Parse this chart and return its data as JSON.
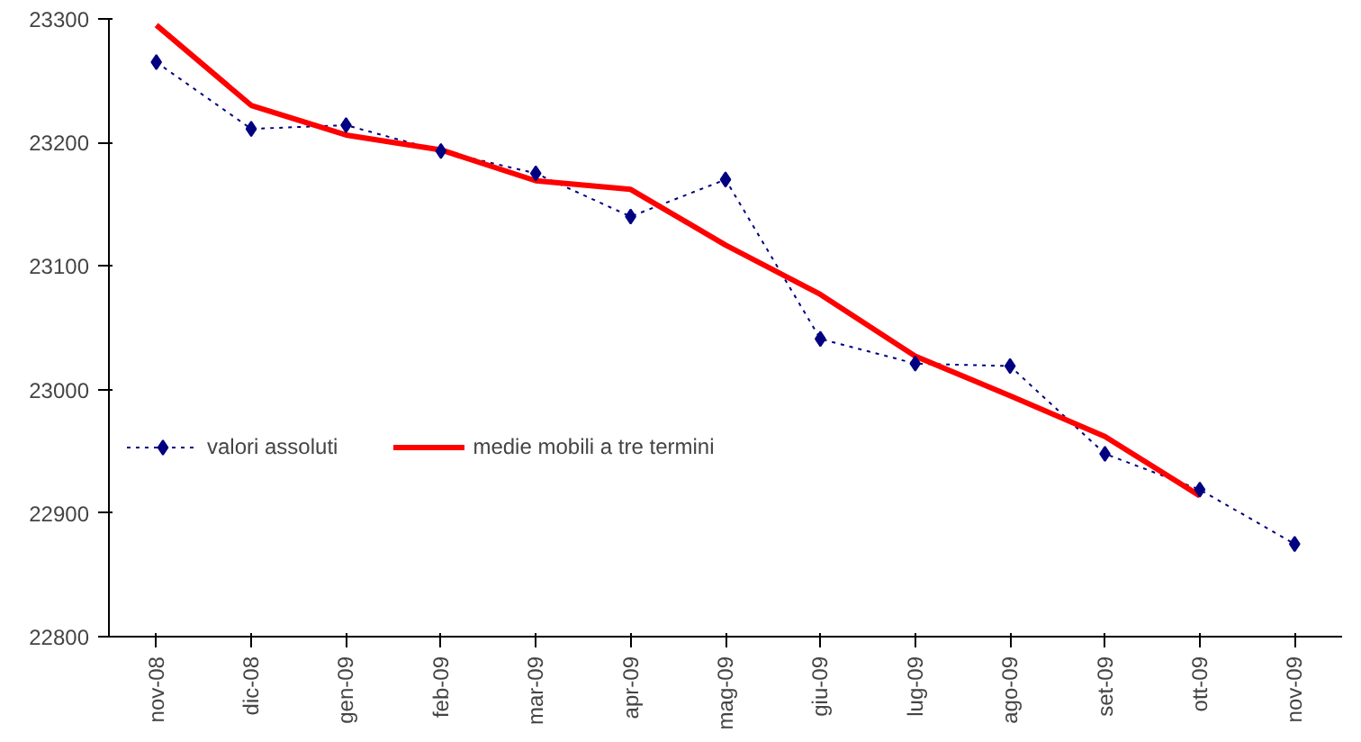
{
  "chart_data": {
    "type": "line",
    "categories": [
      "nov-08",
      "dic-08",
      "gen-09",
      "feb-09",
      "mar-09",
      "apr-09",
      "mag-09",
      "giu-09",
      "lug-09",
      "ago-09",
      "set-09",
      "ott-09",
      "nov-09"
    ],
    "series": [
      {
        "name": "valori assoluti",
        "color": "#000080",
        "marker": "diamond",
        "line_style": "dotted",
        "values": [
          23265,
          23211,
          23214,
          23193,
          23175,
          23140,
          23170,
          23041,
          23021,
          23019,
          22948,
          22919,
          22875
        ]
      },
      {
        "name": "medie mobili a tre termini",
        "color": "#ff0000",
        "marker": "none",
        "line_style": "solid",
        "values": [
          23295,
          23230,
          23206,
          23194,
          23169,
          23162,
          23117,
          23077,
          23027,
          22995,
          22962,
          22914,
          null
        ]
      }
    ],
    "ylim": [
      22800,
      23300
    ],
    "yticks": [
      22800,
      22900,
      23000,
      23100,
      23200,
      23300
    ],
    "grid": false,
    "legend": "left"
  }
}
